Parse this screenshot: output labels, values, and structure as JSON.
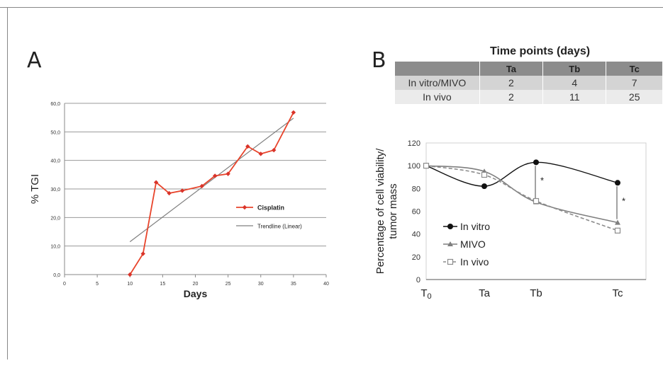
{
  "panel_a": {
    "letter": "A",
    "chart_data": {
      "type": "line",
      "xlabel": "Days",
      "ylabel": "% TGI",
      "xlim": [
        0,
        40
      ],
      "ylim": [
        0,
        60
      ],
      "x_ticks": [
        "0",
        "5",
        "10",
        "15",
        "20",
        "25",
        "30",
        "35",
        "40"
      ],
      "y_ticks": [
        "0,0",
        "10,0",
        "20,0",
        "30,0",
        "40,0",
        "50,0",
        "60,0"
      ],
      "grid": "horizontal",
      "legend_position": "right",
      "series": [
        {
          "name": "Cisplatin",
          "color": "#e8442b",
          "marker": "diamond",
          "x": [
            10,
            12,
            14,
            16,
            18,
            21,
            23,
            25,
            28,
            30,
            32,
            35
          ],
          "y": [
            0.0,
            7.3,
            32.3,
            28.5,
            29.4,
            31.0,
            34.6,
            35.3,
            44.9,
            42.3,
            43.6,
            56.8
          ]
        },
        {
          "name": "Trendline (Linear)",
          "color": "#808080",
          "marker": "none",
          "x": [
            10,
            35
          ],
          "y": [
            11.5,
            54.8
          ]
        }
      ]
    }
  },
  "panel_b": {
    "letter": "B",
    "table": {
      "title": "Time points (days)",
      "columns": [
        "",
        "Ta",
        "Tb",
        "Tc"
      ],
      "rows": [
        {
          "label": "In vitro/MIVO",
          "values": [
            "2",
            "4",
            "7"
          ]
        },
        {
          "label": "In vivo",
          "values": [
            "2",
            "11",
            "25"
          ]
        }
      ]
    },
    "chart_data": {
      "type": "line",
      "ylabel": "Percentage of cell viability/ tumor mass",
      "categories": [
        "T0",
        "Ta",
        "Tb",
        "Tc"
      ],
      "ylim": [
        0,
        120
      ],
      "y_ticks": [
        "0",
        "20",
        "40",
        "60",
        "80",
        "100",
        "120"
      ],
      "legend_position": "bottom-left",
      "series": [
        {
          "name": "In vitro",
          "color": "#111111",
          "marker": "circle",
          "dash": "solid",
          "values": [
            100,
            82,
            103,
            85
          ]
        },
        {
          "name": "MIVO",
          "color": "#7f7f7f",
          "marker": "triangle",
          "dash": "solid",
          "values": [
            100,
            95,
            68,
            50
          ]
        },
        {
          "name": "In vivo",
          "color": "#8c8c8c",
          "marker": "square-open",
          "dash": "dashed",
          "values": [
            100,
            92,
            69,
            43
          ]
        }
      ],
      "annotations": [
        {
          "text": "*",
          "category": "Tb"
        },
        {
          "text": "*",
          "category": "Tc"
        }
      ]
    }
  }
}
